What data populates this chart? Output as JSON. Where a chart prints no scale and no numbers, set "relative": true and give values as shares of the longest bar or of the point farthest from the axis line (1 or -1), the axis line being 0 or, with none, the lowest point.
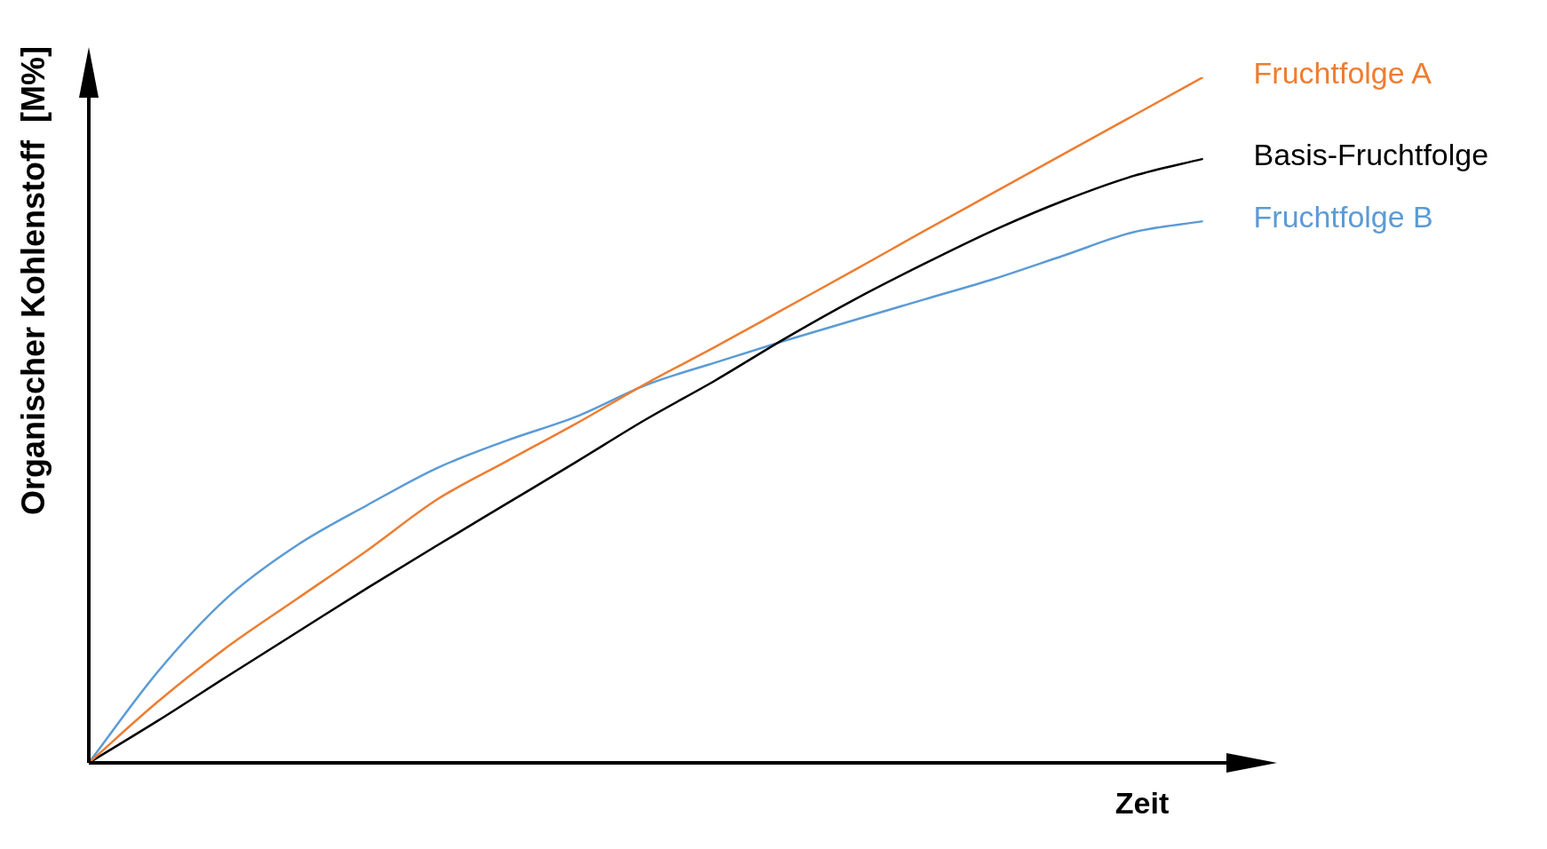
{
  "chart_data": {
    "type": "line",
    "relative": true,
    "xlabel": "Zeit",
    "ylabel": "Organischer Kohlenstoff  [M%]",
    "marker": "none",
    "legend": false,
    "categories": [
      null,
      null,
      null,
      null,
      null,
      null,
      null,
      null,
      null,
      null,
      null,
      null,
      null,
      null,
      null,
      null,
      null,
      null
    ],
    "series": [
      {
        "name": "Fruchtfolge A",
        "color": "#ed7d31",
        "values": [
          0,
          0.09,
          0.17,
          0.24,
          0.31,
          0.384,
          0.44,
          0.495,
          0.553,
          0.607,
          0.663,
          0.719,
          0.776,
          0.832,
          0.888,
          0.944,
          1,
          null
        ]
      },
      {
        "name": "Basis-Fruchtfolge",
        "color": "#000000",
        "values": [
          0,
          0.062,
          0.127,
          0.191,
          0.255,
          0.317,
          0.378,
          0.439,
          0.501,
          0.558,
          0.619,
          0.676,
          0.728,
          0.777,
          0.82,
          0.856,
          0.881,
          null
        ]
      },
      {
        "name": "Fruchtfolge B",
        "color": "#5b9bd5",
        "values": [
          0,
          0.134,
          0.242,
          0.318,
          0.376,
          0.43,
          0.47,
          0.505,
          0.551,
          0.584,
          0.616,
          0.646,
          0.676,
          0.706,
          0.74,
          0.774,
          0.79,
          null
        ]
      }
    ]
  }
}
